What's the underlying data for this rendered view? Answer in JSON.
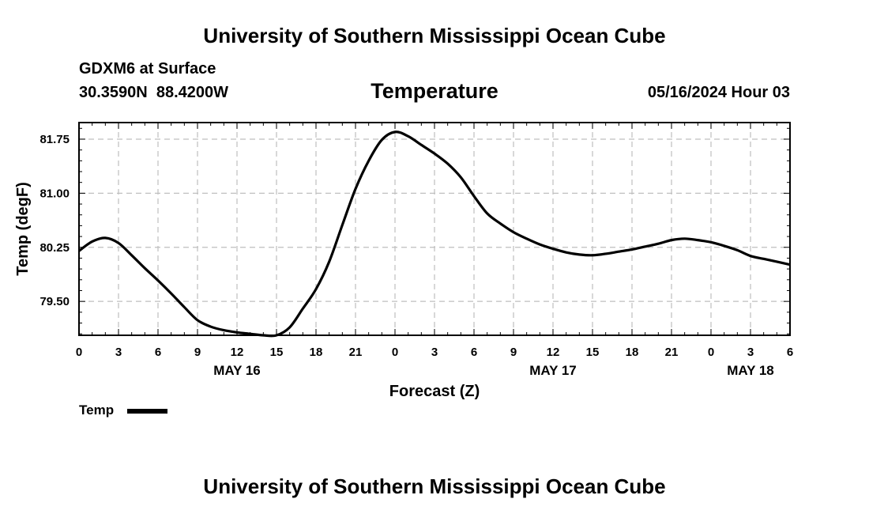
{
  "header": {
    "title_top": "University of Southern Mississippi Ocean Cube",
    "station": "GDXM6 at Surface",
    "coords": "30.3590N  88.4200W",
    "variable": "Temperature",
    "datetime": "05/16/2024 Hour 03",
    "title_bottom": "University of Southern Mississippi Ocean Cube"
  },
  "legend": {
    "label": "Temp"
  },
  "colors": {
    "line": "#000000",
    "grid": "#bfbfbf",
    "axis": "#000000"
  },
  "chart_data": {
    "type": "line",
    "title": "Temperature",
    "xlabel": "Forecast (Z)",
    "ylabel": "Temp (degF)",
    "ylim": [
      79.03,
      81.98
    ],
    "xlim": [
      0,
      54
    ],
    "x_ticks": [
      0,
      3,
      6,
      9,
      12,
      15,
      18,
      21,
      24,
      27,
      30,
      33,
      36,
      39,
      42,
      45,
      48,
      51,
      54
    ],
    "x_tick_labels": [
      "0",
      "3",
      "6",
      "9",
      "12",
      "15",
      "18",
      "21",
      "0",
      "3",
      "6",
      "9",
      "12",
      "15",
      "18",
      "21",
      "0",
      "3",
      "6"
    ],
    "date_labels": [
      {
        "x": 12,
        "label": "MAY 16"
      },
      {
        "x": 36,
        "label": "MAY 17"
      },
      {
        "x": 51,
        "label": "MAY 18"
      }
    ],
    "y_ticks": [
      79.5,
      80.25,
      81.0,
      81.75
    ],
    "y_tick_labels": [
      "79.50",
      "80.25",
      "81.00",
      "81.75"
    ],
    "grid": true,
    "series": [
      {
        "name": "Temp",
        "x": [
          0,
          1,
          2,
          3,
          4,
          5,
          6,
          7,
          8,
          9,
          10,
          11,
          12,
          13,
          14,
          15,
          16,
          17,
          18,
          19,
          20,
          21,
          22,
          23,
          24,
          25,
          26,
          27,
          28,
          29,
          30,
          31,
          32,
          33,
          34,
          35,
          36,
          37,
          38,
          39,
          40,
          41,
          42,
          43,
          44,
          45,
          46,
          47,
          48,
          49,
          50,
          51,
          52,
          53,
          54
        ],
        "values": [
          80.2,
          80.33,
          80.38,
          80.31,
          80.14,
          79.96,
          79.79,
          79.61,
          79.42,
          79.24,
          79.15,
          79.1,
          79.07,
          79.05,
          79.03,
          79.03,
          79.14,
          79.4,
          79.67,
          80.05,
          80.56,
          81.06,
          81.45,
          81.74,
          81.85,
          81.79,
          81.67,
          81.55,
          81.41,
          81.22,
          80.96,
          80.72,
          80.58,
          80.46,
          80.37,
          80.29,
          80.23,
          80.18,
          80.15,
          80.14,
          80.16,
          80.19,
          80.22,
          80.26,
          80.3,
          80.35,
          80.37,
          80.35,
          80.32,
          80.27,
          80.21,
          80.13,
          80.09,
          80.05,
          80.01
        ]
      }
    ]
  }
}
